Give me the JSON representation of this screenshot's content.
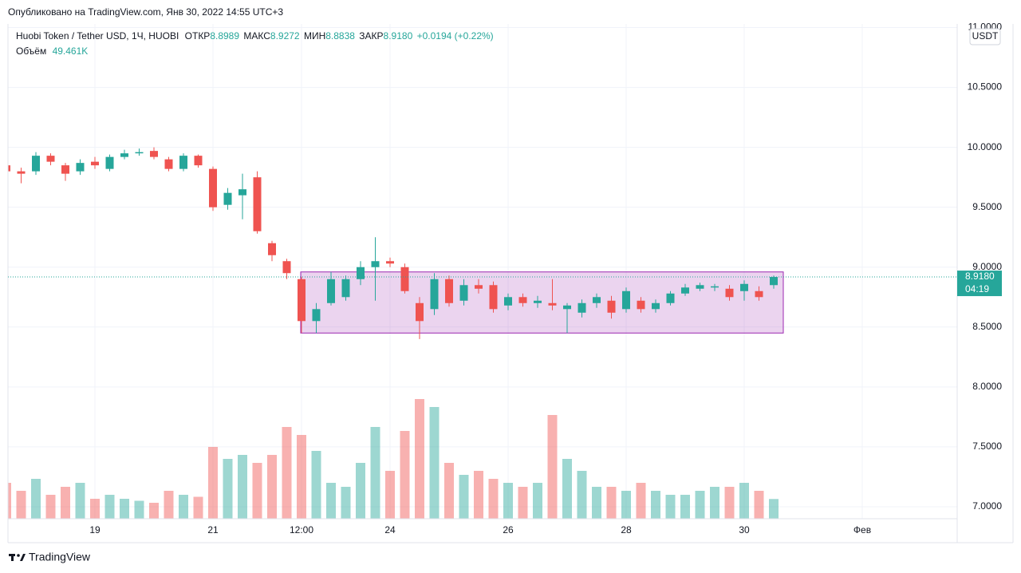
{
  "published": "Опубликовано на TradingView.com, Янв 30, 2022 14:55 UTC+3",
  "chart_data": {
    "type": "candlestick",
    "title": "Huobi Token / Tether USD, 1Ч, HUOBI",
    "ohlc_labels": {
      "open": "ОТКР",
      "high": "МАКС",
      "low": "МИН",
      "close": "ЗАКР"
    },
    "ohlc_values": {
      "open": 8.8989,
      "high": 8.9272,
      "low": 8.8838,
      "close": 8.918
    },
    "ohlc_value_labels": {
      "open": "8.8989",
      "high": "8.9272",
      "low": "8.8838",
      "close": "8.9180"
    },
    "change_label": "+0.0194 (+0.22%)",
    "volume_label": "Объём",
    "volume_last": 49.461,
    "volume_last_label": "49.461K",
    "currency": "USDT",
    "last_price": {
      "value": 8.918,
      "label": "8.9180",
      "countdown": "04:19"
    },
    "box": {
      "top": 8.96,
      "bottom": 8.45
    },
    "up_color": "#26a69a",
    "down_color": "#ef5350",
    "grid": true,
    "ylim": [
      6.9,
      11.03
    ],
    "yticks": [
      {
        "value": 11,
        "label": "11.0000"
      },
      {
        "value": 10.5,
        "label": "10.5000"
      },
      {
        "value": 10,
        "label": "10.0000"
      },
      {
        "value": 9.5,
        "label": "9.5000"
      },
      {
        "value": 9,
        "label": "9.0000"
      },
      {
        "value": 8.5,
        "label": "8.5000"
      },
      {
        "value": 8,
        "label": "8.0000"
      },
      {
        "value": 7.5,
        "label": "7.5000"
      },
      {
        "value": 7,
        "label": "7.0000"
      }
    ],
    "volume_ylim": [
      0,
      400
    ],
    "categories": [
      null,
      null,
      null,
      null,
      null,
      null,
      "19",
      null,
      null,
      null,
      null,
      null,
      null,
      null,
      "21",
      null,
      null,
      null,
      null,
      null,
      "12:00",
      null,
      null,
      null,
      null,
      null,
      "24",
      null,
      null,
      null,
      null,
      null,
      null,
      null,
      "26",
      null,
      null,
      null,
      null,
      null,
      null,
      null,
      "28",
      null,
      null,
      null,
      null,
      null,
      null,
      null,
      "30",
      null,
      null,
      null,
      null,
      null,
      null,
      null,
      "Фев",
      null,
      null,
      null,
      null,
      null,
      null
    ],
    "open": [
      9.85,
      9.8,
      9.8,
      9.93,
      9.85,
      9.8,
      9.88,
      9.82,
      9.92,
      9.95,
      9.97,
      9.9,
      9.82,
      9.93,
      9.82,
      9.52,
      9.6,
      9.75,
      9.2,
      9.05,
      8.9,
      8.55,
      8.7,
      8.75,
      8.9,
      9.0,
      9.05,
      9.0,
      8.7,
      8.65,
      8.9,
      8.72,
      8.85,
      8.85,
      8.68,
      8.75,
      8.7,
      8.7,
      8.65,
      8.62,
      8.7,
      8.72,
      8.65,
      8.72,
      8.65,
      8.7,
      8.78,
      8.82,
      8.83,
      8.82,
      8.8,
      8.8,
      8.85,
      null,
      null,
      null,
      null,
      null,
      null,
      null,
      null,
      null,
      null,
      null,
      null
    ],
    "high": [
      9.88,
      9.83,
      9.96,
      9.95,
      9.87,
      9.9,
      9.92,
      9.94,
      9.98,
      9.99,
      10.0,
      9.92,
      9.95,
      9.94,
      9.84,
      9.66,
      9.78,
      9.8,
      9.22,
      9.07,
      8.92,
      8.7,
      8.96,
      8.93,
      9.05,
      9.25,
      9.08,
      9.03,
      8.75,
      8.95,
      8.93,
      8.9,
      8.9,
      8.88,
      8.78,
      8.78,
      8.76,
      8.9,
      8.7,
      8.73,
      8.78,
      8.76,
      8.83,
      8.75,
      8.73,
      8.8,
      8.86,
      8.87,
      8.86,
      8.85,
      8.89,
      8.84,
      8.93,
      null,
      null,
      null,
      null,
      null,
      null,
      null,
      null,
      null,
      null,
      null,
      null
    ],
    "low": [
      9.76,
      9.7,
      9.77,
      9.85,
      9.72,
      9.77,
      9.82,
      9.8,
      9.9,
      9.93,
      9.9,
      9.8,
      9.8,
      9.83,
      9.47,
      9.48,
      9.4,
      9.28,
      9.05,
      8.9,
      8.45,
      8.45,
      8.68,
      8.72,
      8.85,
      8.72,
      9.0,
      8.78,
      8.4,
      8.6,
      8.67,
      8.68,
      8.78,
      8.62,
      8.64,
      8.67,
      8.66,
      8.64,
      8.45,
      8.58,
      8.66,
      8.57,
      8.62,
      8.62,
      8.62,
      8.68,
      8.76,
      8.8,
      8.8,
      8.72,
      8.72,
      8.72,
      8.82,
      null,
      null,
      null,
      null,
      null,
      null,
      null,
      null,
      null,
      null,
      null,
      null
    ],
    "close": [
      9.8,
      9.78,
      9.93,
      9.88,
      9.78,
      9.87,
      9.85,
      9.92,
      9.95,
      9.96,
      9.92,
      9.82,
      9.93,
      9.85,
      9.5,
      9.62,
      9.65,
      9.3,
      9.1,
      8.95,
      8.55,
      8.65,
      8.9,
      8.9,
      9.0,
      9.05,
      9.03,
      8.8,
      8.55,
      8.9,
      8.7,
      8.85,
      8.82,
      8.65,
      8.75,
      8.7,
      8.72,
      8.68,
      8.68,
      8.7,
      8.75,
      8.62,
      8.8,
      8.65,
      8.7,
      8.78,
      8.83,
      8.85,
      8.84,
      8.75,
      8.86,
      8.75,
      8.918,
      null,
      null,
      null,
      null,
      null,
      null,
      null,
      null,
      null,
      null,
      null,
      null
    ],
    "volume": [
      90,
      70,
      100,
      60,
      80,
      90,
      50,
      60,
      50,
      45,
      40,
      70,
      60,
      55,
      180,
      150,
      160,
      140,
      160,
      230,
      210,
      170,
      90,
      80,
      140,
      230,
      120,
      220,
      300,
      280,
      140,
      110,
      120,
      100,
      90,
      80,
      90,
      260,
      150,
      120,
      80,
      80,
      70,
      90,
      70,
      60,
      60,
      70,
      80,
      80,
      90,
      70,
      49.461,
      null,
      null,
      null,
      null,
      null,
      null,
      null,
      null,
      null,
      null,
      null,
      null
    ]
  },
  "footer": "TradingView"
}
